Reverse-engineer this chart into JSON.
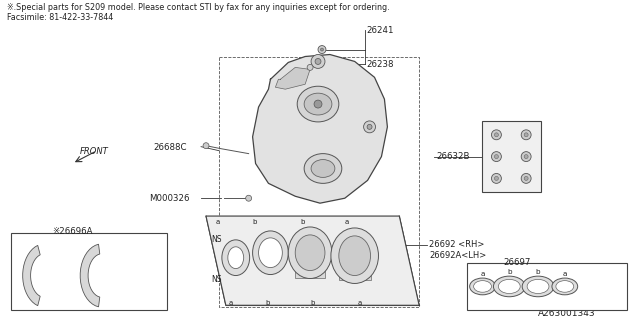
{
  "title_line1": "※.Special parts for S209 model. Please contact STI by fax for any inquiries except for ordering.",
  "title_line2": "Facsimile: 81-422-33-7844",
  "footer": "A263001343",
  "caliper_body": {
    "color": "#e8e8e8",
    "edge_color": "#333333"
  },
  "piston_block": {
    "color": "#eeeeee",
    "edge_color": "#333333"
  },
  "label_color": "#222222",
  "line_color": "#333333"
}
